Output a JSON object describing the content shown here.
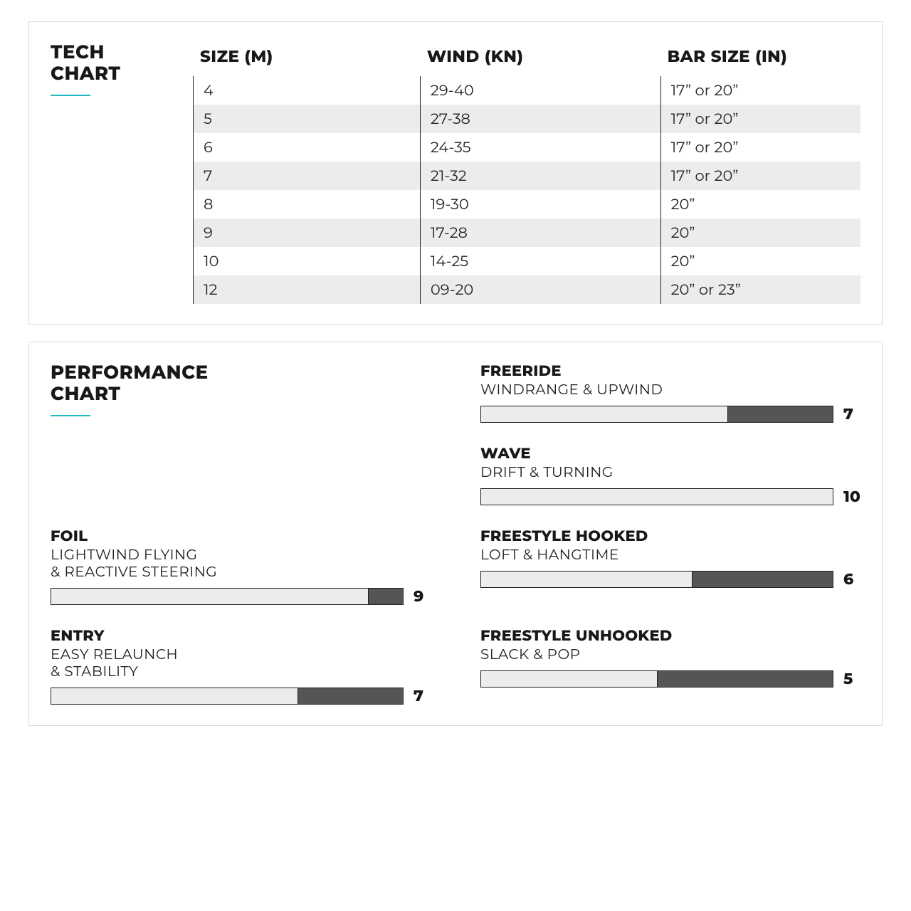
{
  "tech_chart": {
    "title_line1": "TECH",
    "title_line2": "CHART",
    "accent_color": "#1eb8c1",
    "columns": {
      "size": "SIZE (M)",
      "wind": "WIND (KN)",
      "bar": "BAR SIZE (IN)"
    },
    "row_alt_bg": "#ececec",
    "border_color": "#222222",
    "rows": [
      {
        "size": "4",
        "wind": "29-40",
        "bar": "17” or 20”"
      },
      {
        "size": "5",
        "wind": "27-38",
        "bar": "17” or 20”"
      },
      {
        "size": "6",
        "wind": "24-35",
        "bar": "17” or 20”"
      },
      {
        "size": "7",
        "wind": "21-32",
        "bar": "17” or 20”"
      },
      {
        "size": "8",
        "wind": "19-30",
        "bar": "20”"
      },
      {
        "size": "9",
        "wind": "17-28",
        "bar": "20”"
      },
      {
        "size": "10",
        "wind": "14-25",
        "bar": "20”"
      },
      {
        "size": "12",
        "wind": "09-20",
        "bar": "20” or 23”"
      }
    ]
  },
  "performance_chart": {
    "title_line1": "PERFORMANCE",
    "title_line2": "CHART",
    "accent_color": "#1eb8c1",
    "bar_bg": "#ececec",
    "bar_fill_remaining": "#555555",
    "bar_border": "#222222",
    "max_score": 10,
    "items": {
      "freeride": {
        "title": "FREERIDE",
        "sub": "WINDRANGE & UPWIND",
        "score": 7
      },
      "wave": {
        "title": "WAVE",
        "sub": "DRIFT & TURNING",
        "score": 10
      },
      "foil": {
        "title": "FOIL",
        "sub_line1": "LIGHTWIND FLYING",
        "sub_line2": "& REACTIVE STEERING",
        "score": 9
      },
      "freestyle_hooked": {
        "title": "FREESTYLE HOOKED",
        "sub": "LOFT & HANGTIME",
        "score": 6
      },
      "entry": {
        "title": "ENTRY",
        "sub_line1": "EASY RELAUNCH",
        "sub_line2": "& STABILITY",
        "score": 7
      },
      "freestyle_unhooked": {
        "title": "FREESTYLE UNHOOKED",
        "sub": "SLACK & POP",
        "score": 5
      }
    }
  }
}
